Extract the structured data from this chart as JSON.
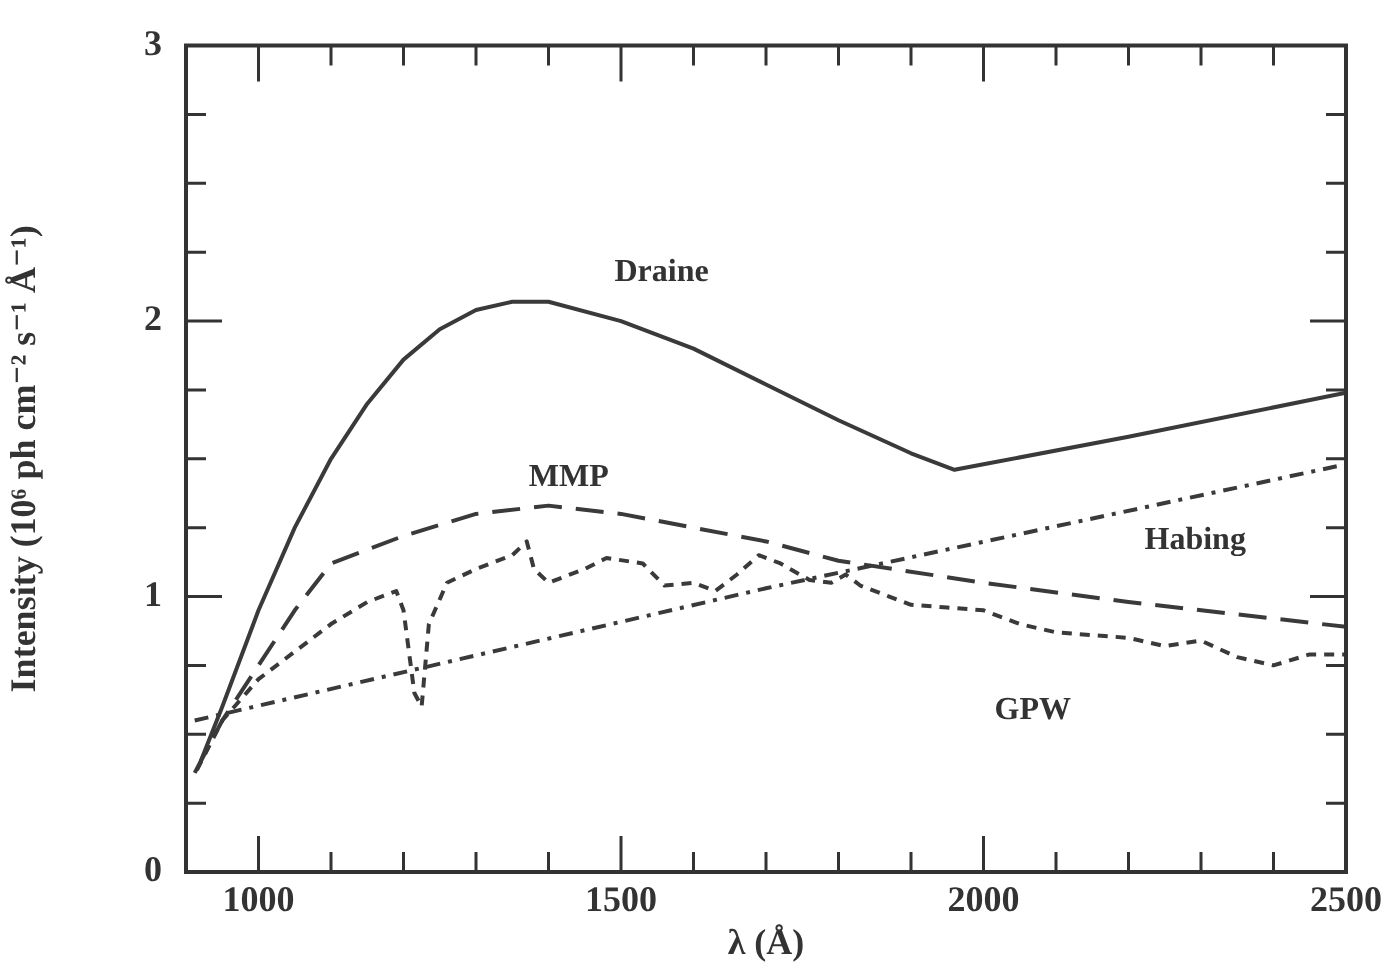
{
  "chart_data": {
    "type": "line",
    "xlabel": "λ (Å)",
    "ylabel": "Intensity (10⁶ ph cm⁻² s⁻¹ Å⁻¹)",
    "xlim": [
      900,
      2500
    ],
    "xticks": [
      1000,
      {
        "value": 1100,
        "label": null
      },
      {
        "value": 1200,
        "label": null
      },
      {
        "value": 1300,
        "label": null
      },
      {
        "value": 1400,
        "label": null
      },
      1500,
      {
        "value": 1600,
        "label": null
      },
      {
        "value": 1700,
        "label": null
      },
      {
        "value": 1800,
        "label": null
      },
      {
        "value": 1900,
        "label": null
      },
      2000,
      {
        "value": 2100,
        "label": null
      },
      {
        "value": 2200,
        "label": null
      },
      {
        "value": 2300,
        "label": null
      },
      {
        "value": 2400,
        "label": null
      },
      2500
    ],
    "ylim": [
      0,
      3
    ],
    "yticks": [
      0,
      {
        "value": 0.25,
        "label": null
      },
      {
        "value": 0.5,
        "label": null
      },
      {
        "value": 0.75,
        "label": null
      },
      1,
      {
        "value": 1.25,
        "label": null
      },
      {
        "value": 1.5,
        "label": null
      },
      {
        "value": 1.75,
        "label": null
      },
      2,
      {
        "value": 2.25,
        "label": null
      },
      {
        "value": 2.5,
        "label": null
      },
      {
        "value": 2.75,
        "label": null
      },
      3
    ],
    "grid": false,
    "legend": false,
    "marker": "none",
    "series": [
      {
        "name": "Draine",
        "color": "#3a3a3a",
        "line_style": "solid",
        "x": [
          920,
          950,
          1000,
          1050,
          1100,
          1150,
          1200,
          1250,
          1300,
          1350,
          1400,
          1500,
          1600,
          1700,
          1800,
          1900,
          1960,
          2000,
          2200,
          2500
        ],
        "values": [
          0.4,
          0.6,
          0.95,
          1.25,
          1.5,
          1.7,
          1.86,
          1.97,
          2.04,
          2.07,
          2.07,
          2.0,
          1.9,
          1.77,
          1.64,
          1.52,
          1.46,
          1.48,
          1.58,
          1.74
        ]
      },
      {
        "name": "MMP",
        "color": "#3a3a3a",
        "line_style": "dashed",
        "x": [
          912,
          950,
          1000,
          1050,
          1100,
          1200,
          1300,
          1400,
          1500,
          1600,
          1700,
          1800,
          2000,
          2200,
          2500
        ],
        "values": [
          0.36,
          0.55,
          0.75,
          0.95,
          1.12,
          1.22,
          1.3,
          1.33,
          1.3,
          1.25,
          1.2,
          1.13,
          1.05,
          0.98,
          0.89
        ]
      },
      {
        "name": "GPW",
        "color": "#3a3a3a",
        "line_style": "dotted",
        "x": [
          915,
          950,
          1000,
          1100,
          1150,
          1190,
          1200,
          1215,
          1225,
          1235,
          1260,
          1300,
          1350,
          1370,
          1380,
          1400,
          1450,
          1480,
          1530,
          1560,
          1600,
          1630,
          1660,
          1690,
          1720,
          1760,
          1790,
          1810,
          1830,
          1870,
          1900,
          1950,
          2000,
          2050,
          2100,
          2200,
          2250,
          2300,
          2350,
          2400,
          2450,
          2500
        ],
        "values": [
          0.37,
          0.55,
          0.7,
          0.9,
          0.98,
          1.02,
          0.95,
          0.65,
          0.6,
          0.9,
          1.05,
          1.1,
          1.15,
          1.2,
          1.1,
          1.05,
          1.1,
          1.14,
          1.12,
          1.04,
          1.05,
          1.02,
          1.08,
          1.15,
          1.12,
          1.06,
          1.05,
          1.08,
          1.04,
          1.0,
          0.97,
          0.96,
          0.95,
          0.9,
          0.87,
          0.85,
          0.82,
          0.84,
          0.78,
          0.75,
          0.79,
          0.79
        ]
      },
      {
        "name": "Habing",
        "color": "#3a3a3a",
        "line_style": "dashdot",
        "x": [
          912,
          1700,
          2500
        ],
        "values": [
          0.55,
          1.03,
          1.48
        ]
      }
    ]
  }
}
